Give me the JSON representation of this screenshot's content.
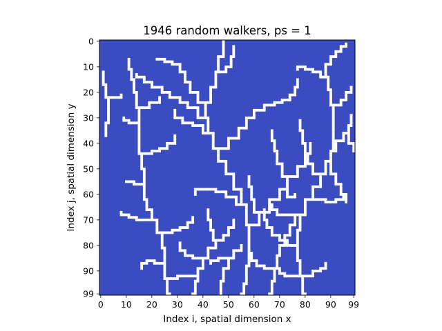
{
  "chart_data": {
    "type": "heatmap",
    "title": "1946 random walkers, ps = 1",
    "xlabel": "Index i, spatial dimension x",
    "ylabel": "Index j, spatial dimension y",
    "grid_size": [
      100,
      100
    ],
    "xlim": [
      0,
      99
    ],
    "ylim": [
      0,
      99
    ],
    "y_inverted": true,
    "grid": false,
    "xticks": [
      {
        "value": 0,
        "label": "0"
      },
      {
        "value": 10,
        "label": "10"
      },
      {
        "value": 20,
        "label": "20"
      },
      {
        "value": 30,
        "label": "30"
      },
      {
        "value": 40,
        "label": "40"
      },
      {
        "value": 50,
        "label": "50"
      },
      {
        "value": 60,
        "label": "60"
      },
      {
        "value": 70,
        "label": "70"
      },
      {
        "value": 80,
        "label": "80"
      },
      {
        "value": 90,
        "label": "90"
      },
      {
        "value": 99,
        "label": "99"
      }
    ],
    "yticks": [
      {
        "value": 0,
        "label": "0"
      },
      {
        "value": 10,
        "label": "10"
      },
      {
        "value": 20,
        "label": "20"
      },
      {
        "value": 30,
        "label": "30"
      },
      {
        "value": 40,
        "label": "40"
      },
      {
        "value": 50,
        "label": "50"
      },
      {
        "value": 60,
        "label": "60"
      },
      {
        "value": 70,
        "label": "70"
      },
      {
        "value": 80,
        "label": "80"
      },
      {
        "value": 90,
        "label": "90"
      },
      {
        "value": 99,
        "label": "99"
      }
    ],
    "colors": {
      "empty": "#3b4cc0",
      "occupied": "#ffffff"
    },
    "occupied_paths": [
      [
        [
          55,
          99
        ],
        [
          56,
          95
        ],
        [
          57,
          88
        ],
        [
          58,
          80
        ],
        [
          58,
          72
        ],
        [
          57,
          64
        ],
        [
          55,
          58
        ],
        [
          52,
          52
        ],
        [
          49,
          47
        ],
        [
          46,
          42
        ],
        [
          44,
          36
        ],
        [
          42,
          30
        ],
        [
          41,
          24
        ],
        [
          43,
          18
        ],
        [
          45,
          12
        ],
        [
          46,
          6
        ],
        [
          48,
          0
        ]
      ],
      [
        [
          58,
          72
        ],
        [
          62,
          67
        ],
        [
          66,
          62
        ],
        [
          70,
          58
        ],
        [
          73,
          53
        ],
        [
          77,
          49
        ],
        [
          80,
          44
        ],
        [
          82,
          40
        ]
      ],
      [
        [
          57,
          64
        ],
        [
          53,
          61
        ],
        [
          49,
          59
        ],
        [
          45,
          58
        ],
        [
          41,
          58
        ],
        [
          37,
          60
        ]
      ],
      [
        [
          46,
          42
        ],
        [
          50,
          38
        ],
        [
          54,
          34
        ],
        [
          57,
          30
        ],
        [
          60,
          27
        ],
        [
          64,
          25
        ]
      ],
      [
        [
          44,
          36
        ],
        [
          40,
          33
        ],
        [
          36,
          32
        ],
        [
          32,
          30
        ],
        [
          29,
          27
        ]
      ],
      [
        [
          42,
          30
        ],
        [
          38,
          26
        ],
        [
          34,
          24
        ],
        [
          31,
          22
        ],
        [
          27,
          20
        ],
        [
          24,
          18
        ]
      ],
      [
        [
          41,
          24
        ],
        [
          38,
          20
        ],
        [
          35,
          16
        ],
        [
          33,
          12
        ],
        [
          31,
          9
        ]
      ],
      [
        [
          45,
          12
        ],
        [
          49,
          10
        ],
        [
          51,
          6
        ],
        [
          52,
          2
        ]
      ],
      [
        [
          27,
          99
        ],
        [
          26,
          93
        ],
        [
          25,
          87
        ],
        [
          25,
          81
        ],
        [
          24,
          75
        ],
        [
          22,
          70
        ],
        [
          20,
          66
        ],
        [
          18,
          62
        ],
        [
          17,
          56
        ],
        [
          17,
          50
        ],
        [
          16,
          44
        ],
        [
          15,
          38
        ],
        [
          15,
          32
        ],
        [
          15,
          26
        ],
        [
          14,
          20
        ],
        [
          13,
          15
        ]
      ],
      [
        [
          24,
          75
        ],
        [
          28,
          74
        ],
        [
          31,
          73
        ],
        [
          34,
          71
        ],
        [
          36,
          69
        ]
      ],
      [
        [
          22,
          70
        ],
        [
          18,
          70
        ],
        [
          14,
          69
        ],
        [
          11,
          68
        ],
        [
          8,
          67
        ]
      ],
      [
        [
          17,
          56
        ],
        [
          13,
          55
        ],
        [
          10,
          55
        ]
      ],
      [
        [
          16,
          44
        ],
        [
          20,
          43
        ],
        [
          23,
          42
        ],
        [
          26,
          40
        ],
        [
          29,
          37
        ]
      ],
      [
        [
          15,
          32
        ],
        [
          11,
          31
        ],
        [
          9,
          30
        ]
      ],
      [
        [
          15,
          26
        ],
        [
          19,
          24
        ],
        [
          23,
          22
        ]
      ],
      [
        [
          25,
          87
        ],
        [
          21,
          86
        ],
        [
          18,
          87
        ],
        [
          16,
          89
        ]
      ],
      [
        [
          26,
          93
        ],
        [
          30,
          92
        ],
        [
          34,
          92
        ],
        [
          38,
          90
        ]
      ],
      [
        [
          80,
          99
        ],
        [
          79,
          92
        ],
        [
          78,
          86
        ],
        [
          77,
          80
        ],
        [
          77,
          74
        ],
        [
          78,
          68
        ],
        [
          80,
          62
        ],
        [
          83,
          57
        ],
        [
          86,
          52
        ],
        [
          88,
          47
        ],
        [
          90,
          43
        ],
        [
          92,
          39
        ],
        [
          95,
          36
        ],
        [
          97,
          33
        ],
        [
          98,
          29
        ]
      ],
      [
        [
          77,
          80
        ],
        [
          73,
          78
        ],
        [
          70,
          76
        ],
        [
          67,
          73
        ],
        [
          65,
          70
        ],
        [
          64,
          66
        ]
      ],
      [
        [
          78,
          68
        ],
        [
          74,
          68
        ],
        [
          71,
          68
        ],
        [
          69,
          66
        ],
        [
          67,
          64
        ]
      ],
      [
        [
          80,
          62
        ],
        [
          84,
          62
        ],
        [
          88,
          63
        ],
        [
          92,
          62
        ],
        [
          95,
          60
        ]
      ],
      [
        [
          86,
          52
        ],
        [
          83,
          48
        ],
        [
          81,
          44
        ],
        [
          80,
          40
        ],
        [
          79,
          35
        ],
        [
          78,
          31
        ]
      ],
      [
        [
          88,
          47
        ],
        [
          90,
          52
        ],
        [
          92,
          56
        ],
        [
          94,
          60
        ],
        [
          96,
          63
        ]
      ],
      [
        [
          90,
          43
        ],
        [
          91,
          37
        ],
        [
          91,
          31
        ],
        [
          91,
          25
        ],
        [
          90,
          19
        ],
        [
          89,
          14
        ],
        [
          88,
          9
        ]
      ],
      [
        [
          91,
          25
        ],
        [
          94,
          23
        ],
        [
          96,
          20
        ],
        [
          98,
          18
        ]
      ],
      [
        [
          89,
          14
        ],
        [
          86,
          12
        ],
        [
          83,
          11
        ],
        [
          80,
          10
        ],
        [
          77,
          11
        ]
      ],
      [
        [
          88,
          9
        ],
        [
          90,
          6
        ],
        [
          92,
          4
        ],
        [
          94,
          2
        ],
        [
          96,
          1
        ]
      ],
      [
        [
          79,
          92
        ],
        [
          83,
          90
        ],
        [
          86,
          89
        ],
        [
          88,
          87
        ]
      ],
      [
        [
          79,
          92
        ],
        [
          75,
          92
        ],
        [
          72,
          91
        ],
        [
          70,
          89
        ]
      ],
      [
        [
          66,
          99
        ],
        [
          67,
          94
        ],
        [
          68,
          89
        ],
        [
          69,
          84
        ],
        [
          70,
          80
        ],
        [
          72,
          76
        ],
        [
          74,
          72
        ],
        [
          76,
          68
        ]
      ],
      [
        [
          68,
          89
        ],
        [
          64,
          88
        ],
        [
          61,
          86
        ],
        [
          59,
          83
        ]
      ],
      [
        [
          36,
          99
        ],
        [
          37,
          94
        ],
        [
          38,
          89
        ],
        [
          40,
          85
        ],
        [
          42,
          81
        ],
        [
          45,
          78
        ],
        [
          48,
          76
        ],
        [
          50,
          73
        ],
        [
          52,
          70
        ]
      ],
      [
        [
          40,
          85
        ],
        [
          36,
          84
        ],
        [
          33,
          82
        ],
        [
          31,
          79
        ]
      ],
      [
        [
          45,
          78
        ],
        [
          44,
          74
        ],
        [
          43,
          70
        ],
        [
          42,
          66
        ]
      ],
      [
        [
          47,
          99
        ],
        [
          47,
          94
        ],
        [
          48,
          89
        ],
        [
          50,
          85
        ],
        [
          52,
          82
        ],
        [
          55,
          80
        ]
      ],
      [
        [
          50,
          85
        ],
        [
          46,
          86
        ],
        [
          43,
          87
        ]
      ],
      [
        [
          24,
          18
        ],
        [
          20,
          16
        ],
        [
          17,
          14
        ],
        [
          14,
          13
        ]
      ],
      [
        [
          31,
          9
        ],
        [
          28,
          8
        ],
        [
          25,
          7
        ],
        [
          22,
          7
        ]
      ],
      [
        [
          64,
          25
        ],
        [
          68,
          24
        ],
        [
          71,
          23
        ],
        [
          74,
          21
        ],
        [
          76,
          18
        ],
        [
          77,
          15
        ]
      ],
      [
        [
          2,
          37
        ],
        [
          2,
          32
        ],
        [
          3,
          27
        ],
        [
          3,
          22
        ],
        [
          2,
          17
        ],
        [
          1,
          12
        ]
      ],
      [
        [
          3,
          22
        ],
        [
          6,
          22
        ],
        [
          8,
          21
        ]
      ],
      [
        [
          73,
          53
        ],
        [
          71,
          48
        ],
        [
          69,
          43
        ],
        [
          68,
          39
        ],
        [
          67,
          35
        ]
      ],
      [
        [
          62,
          67
        ],
        [
          60,
          62
        ],
        [
          59,
          57
        ],
        [
          58,
          53
        ]
      ],
      [
        [
          70,
          58
        ],
        [
          73,
          61
        ],
        [
          76,
          60
        ]
      ],
      [
        [
          95,
          36
        ],
        [
          97,
          40
        ],
        [
          99,
          43
        ]
      ],
      [
        [
          13,
          15
        ],
        [
          12,
          11
        ],
        [
          11,
          7
        ]
      ]
    ]
  }
}
